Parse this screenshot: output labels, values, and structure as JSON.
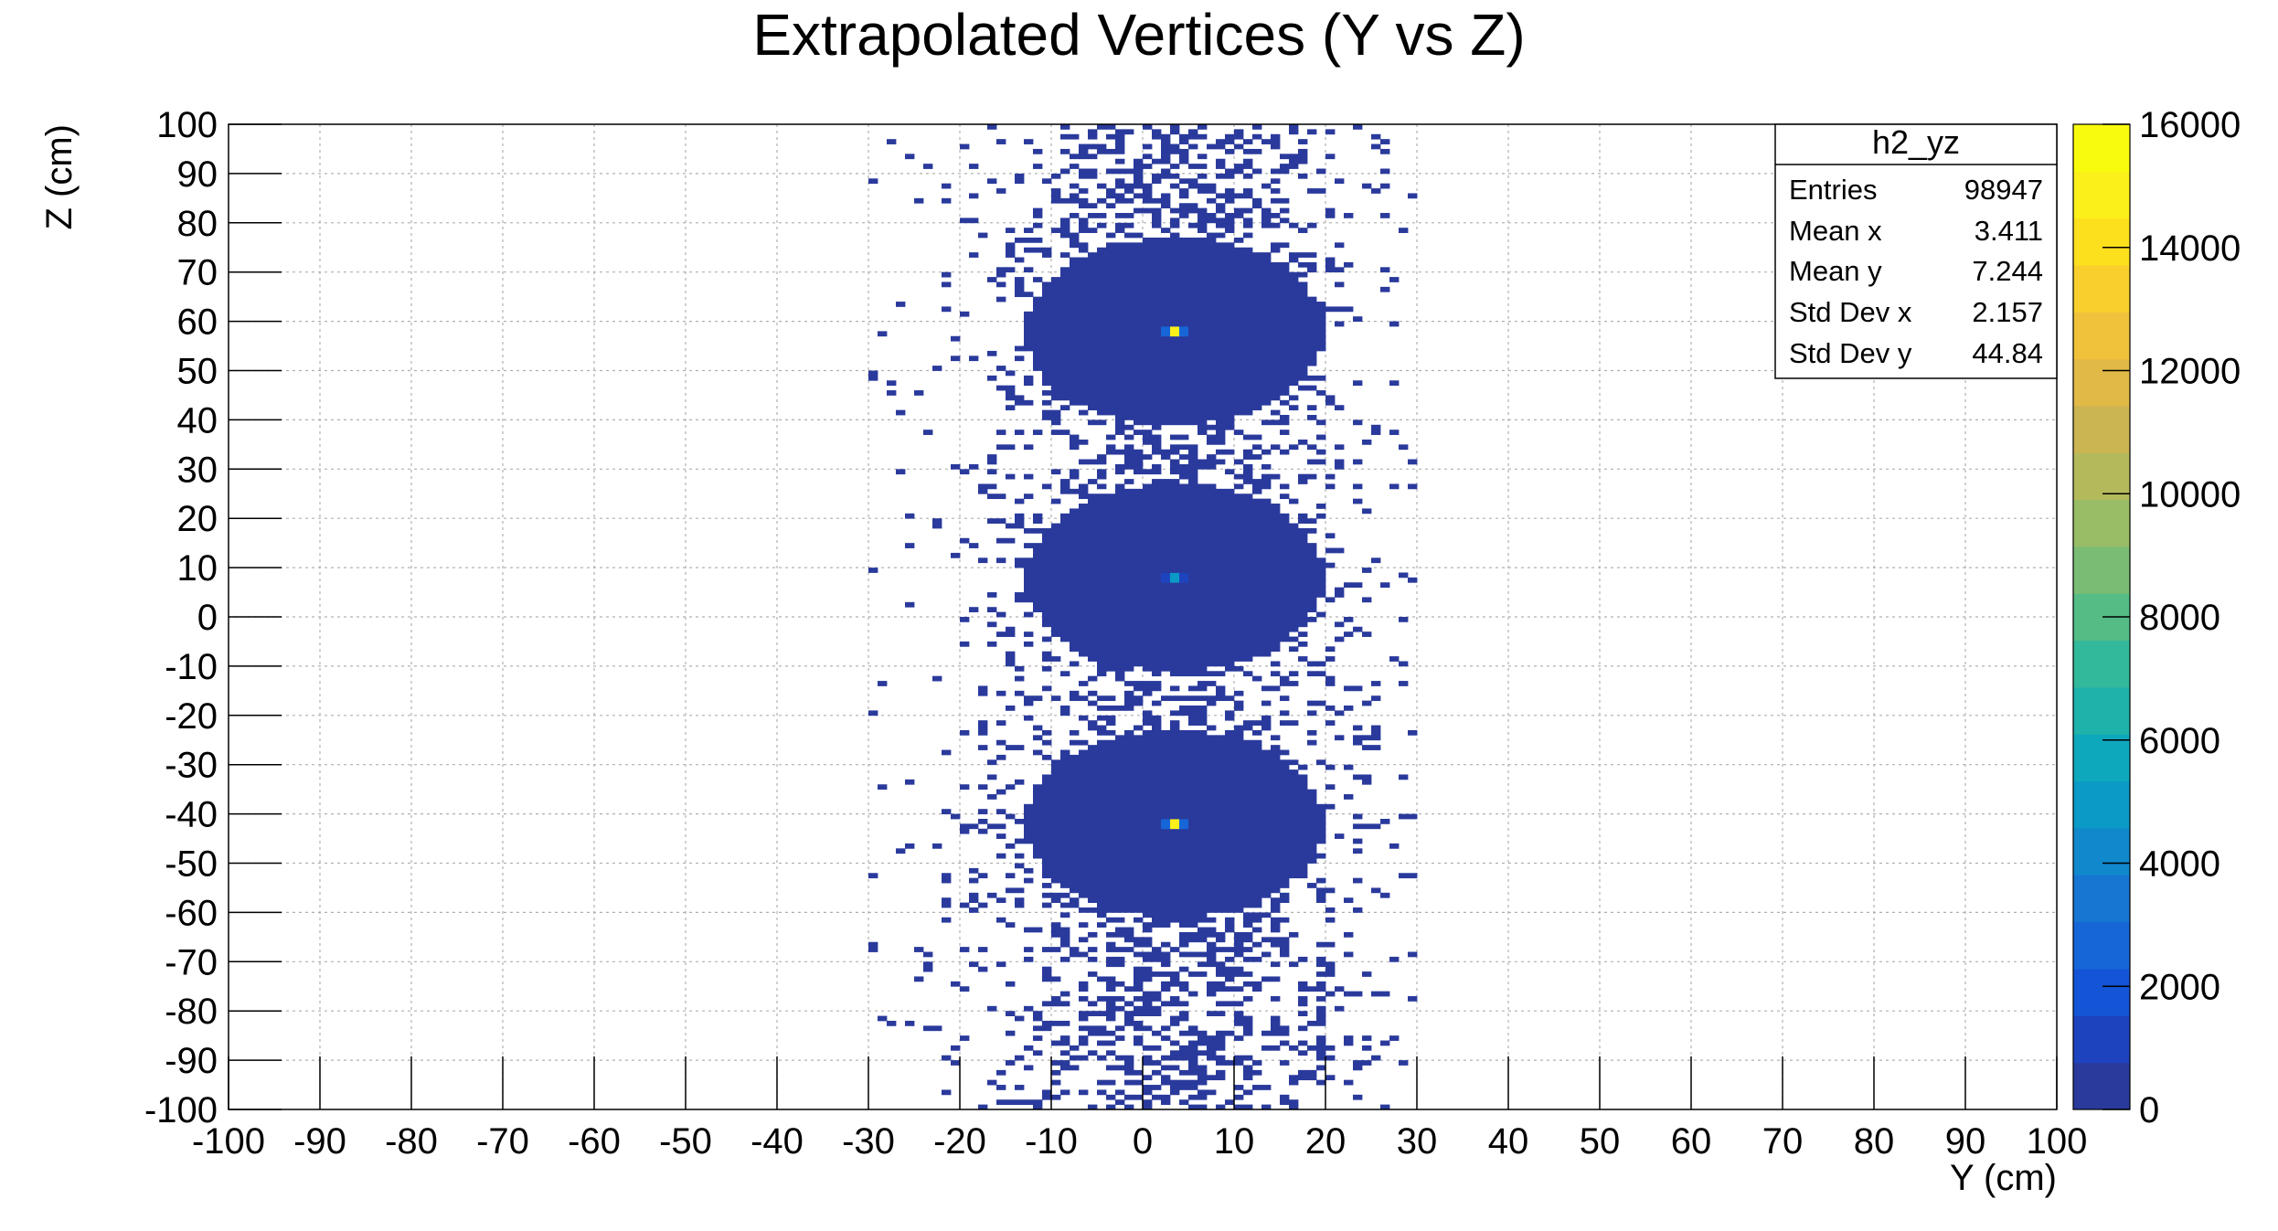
{
  "chart_data": {
    "type": "heatmap",
    "title": "Extrapolated Vertices (Y vs Z)",
    "xlabel": "Y (cm)",
    "ylabel": "Z (cm)",
    "xlim": [
      -100,
      100
    ],
    "ylim": [
      -100,
      100
    ],
    "x_ticks": [
      -100,
      -90,
      -80,
      -70,
      -60,
      -50,
      -40,
      -30,
      -20,
      -10,
      0,
      10,
      20,
      30,
      40,
      50,
      60,
      70,
      80,
      90,
      100
    ],
    "y_ticks": [
      -100,
      -90,
      -80,
      -70,
      -60,
      -50,
      -40,
      -30,
      -20,
      -10,
      0,
      10,
      20,
      30,
      40,
      50,
      60,
      70,
      80,
      90,
      100
    ],
    "grid": true,
    "colorbar": {
      "range": [
        0,
        16000
      ],
      "tick_labels": [
        "0",
        "2000",
        "4000",
        "6000",
        "8000",
        "10000",
        "12000",
        "14000",
        "16000"
      ],
      "palette": [
        "#2a3a9c",
        "#1d44be",
        "#1454d6",
        "#1766d8",
        "#1876d3",
        "#1188cc",
        "#0b99c6",
        "#0ea8bd",
        "#1eb2ab",
        "#32b89a",
        "#55bc86",
        "#7abc74",
        "#98bd66",
        "#b4ba5c",
        "#cbb452",
        "#e1b947",
        "#f0c23b",
        "#f8cf2c",
        "#fcdf1d",
        "#fbf01a",
        "#f9fb0e"
      ]
    },
    "clusters": [
      {
        "y": 3.5,
        "z": 58,
        "sigma_y": 6,
        "sigma_z": 7,
        "peak_count": 15000
      },
      {
        "y": 3.5,
        "z": 8,
        "sigma_y": 6,
        "sigma_z": 7,
        "peak_count": 5000
      },
      {
        "y": 3.5,
        "z": -42,
        "sigma_y": 6,
        "sigma_z": 7,
        "peak_count": 15000
      }
    ],
    "sparse_extent": {
      "y": [
        -30,
        30
      ],
      "z": [
        -100,
        100
      ]
    },
    "stats_box": {
      "name": "h2_yz",
      "rows": [
        {
          "label": "Entries",
          "value": "98947"
        },
        {
          "label": "Mean x",
          "value": "3.411"
        },
        {
          "label": "Mean y",
          "value": "7.244"
        },
        {
          "label": "Std Dev x",
          "value": "2.157"
        },
        {
          "label": "Std Dev y",
          "value": "44.84"
        }
      ]
    }
  }
}
